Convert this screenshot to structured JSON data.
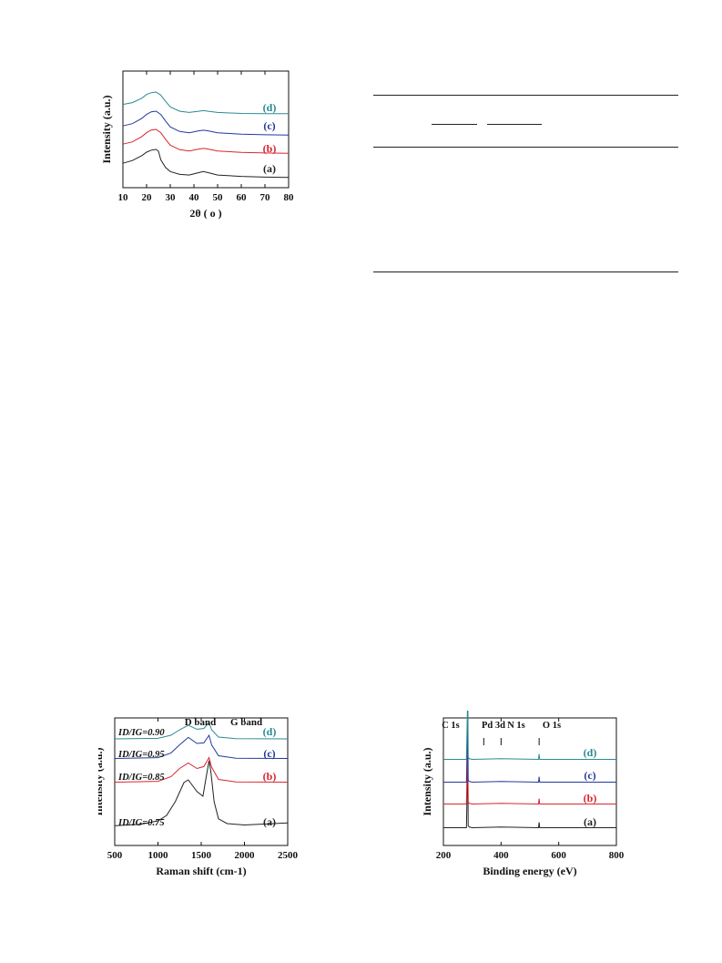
{
  "colors": {
    "a": "#222222",
    "b": "#d8262e",
    "c": "#23399b",
    "d": "#2b8a92"
  },
  "series_labels": [
    "(a)",
    "(b)",
    "(c)",
    "(d)"
  ],
  "chart_data": [
    {
      "type": "line",
      "title": "",
      "xlabel": "2θ ( o )",
      "ylabel": "Intensity (a.u.)",
      "xlim": [
        10,
        80
      ],
      "xticks": [
        10,
        20,
        30,
        40,
        50,
        60,
        70,
        80
      ],
      "grid": false,
      "series": [
        {
          "name": "(a)",
          "x": [
            10,
            14,
            18,
            20,
            22,
            24,
            25,
            26,
            28,
            30,
            34,
            38,
            42,
            44,
            46,
            50,
            60,
            70,
            80
          ],
          "y": [
            0.6,
            0.68,
            0.82,
            0.92,
            0.98,
            1.0,
            0.95,
            0.7,
            0.48,
            0.36,
            0.28,
            0.26,
            0.33,
            0.36,
            0.33,
            0.26,
            0.22,
            0.2,
            0.19
          ]
        },
        {
          "name": "(b)",
          "x": [
            10,
            14,
            18,
            20,
            22,
            24,
            26,
            28,
            30,
            34,
            38,
            42,
            44,
            46,
            50,
            60,
            70,
            80
          ],
          "y": [
            0.55,
            0.62,
            0.78,
            0.9,
            0.98,
            1.0,
            0.9,
            0.7,
            0.52,
            0.38,
            0.34,
            0.4,
            0.42,
            0.4,
            0.34,
            0.3,
            0.28,
            0.27
          ]
        },
        {
          "name": "(c)",
          "x": [
            10,
            14,
            18,
            20,
            22,
            24,
            26,
            28,
            30,
            34,
            38,
            42,
            44,
            46,
            50,
            60,
            70,
            80
          ],
          "y": [
            0.55,
            0.62,
            0.78,
            0.9,
            0.98,
            1.0,
            0.9,
            0.7,
            0.52,
            0.38,
            0.34,
            0.4,
            0.42,
            0.4,
            0.34,
            0.3,
            0.28,
            0.27
          ]
        },
        {
          "name": "(d)",
          "x": [
            10,
            14,
            18,
            20,
            22,
            24,
            26,
            28,
            30,
            34,
            38,
            42,
            44,
            46,
            50,
            60,
            70,
            80
          ],
          "y": [
            0.6,
            0.66,
            0.8,
            0.92,
            0.98,
            1.0,
            0.9,
            0.7,
            0.52,
            0.38,
            0.34,
            0.38,
            0.4,
            0.38,
            0.34,
            0.31,
            0.3,
            0.3
          ]
        }
      ]
    },
    {
      "type": "line",
      "title": "",
      "xlabel": "Raman shift (cm-1)",
      "ylabel": "Intensity (a.u.)",
      "xlim": [
        500,
        2500
      ],
      "xticks": [
        500,
        1000,
        1500,
        2000,
        2500
      ],
      "band_labels": [
        "D band",
        "G band"
      ],
      "ratio_labels": [
        "ID/IG=0.90",
        "ID/IG=0.95",
        "ID/IG=0.85",
        "ID/IG=0.75"
      ],
      "grid": false,
      "series": [
        {
          "name": "(a)",
          "x": [
            500,
            800,
            1000,
            1100,
            1200,
            1300,
            1350,
            1450,
            1520,
            1560,
            1590,
            1610,
            1650,
            1700,
            1800,
            2000,
            2500
          ],
          "y": [
            0.05,
            0.07,
            0.12,
            0.2,
            0.4,
            0.68,
            0.72,
            0.55,
            0.48,
            0.78,
            1.0,
            0.85,
            0.4,
            0.15,
            0.08,
            0.06,
            0.09
          ]
        },
        {
          "name": "(b)",
          "x": [
            500,
            1000,
            1150,
            1250,
            1350,
            1450,
            1530,
            1590,
            1620,
            1700,
            1900,
            2500
          ],
          "y": [
            0.05,
            0.08,
            0.25,
            0.55,
            0.75,
            0.55,
            0.62,
            0.95,
            0.6,
            0.15,
            0.06,
            0.05
          ]
        },
        {
          "name": "(c)",
          "x": [
            500,
            1000,
            1150,
            1250,
            1350,
            1450,
            1530,
            1590,
            1620,
            1700,
            1900,
            2500
          ],
          "y": [
            0.05,
            0.08,
            0.25,
            0.55,
            0.82,
            0.6,
            0.62,
            0.9,
            0.55,
            0.15,
            0.06,
            0.05
          ]
        },
        {
          "name": "(d)",
          "x": [
            500,
            1000,
            1150,
            1250,
            1350,
            1450,
            1530,
            1590,
            1620,
            1700,
            1900,
            2500
          ],
          "y": [
            0.05,
            0.08,
            0.25,
            0.55,
            0.8,
            0.58,
            0.62,
            0.95,
            0.55,
            0.15,
            0.06,
            0.05
          ]
        }
      ]
    },
    {
      "type": "line",
      "title": "",
      "xlabel": "Binding energy (eV)",
      "ylabel": "Intensity (a.u.)",
      "xlim": [
        200,
        800
      ],
      "xticks": [
        200,
        400,
        600,
        800
      ],
      "peak_labels": [
        "C 1s",
        "Pd 3d",
        "N 1s",
        "O 1s"
      ],
      "peak_positions": [
        285,
        340,
        400,
        532
      ],
      "grid": false,
      "series": [
        {
          "name": "(a)",
          "x": [
            200,
            280,
            284,
            285,
            286,
            290,
            300,
            400,
            530,
            532,
            534,
            800
          ],
          "y": [
            0.02,
            0.02,
            0.9,
            0.9,
            0.05,
            0.03,
            0.02,
            0.03,
            0.02,
            0.1,
            0.02,
            0.02
          ]
        },
        {
          "name": "(b)",
          "x": [
            200,
            280,
            284,
            285,
            286,
            290,
            300,
            400,
            530,
            532,
            534,
            800
          ],
          "y": [
            0.02,
            0.02,
            0.9,
            0.9,
            0.05,
            0.03,
            0.02,
            0.03,
            0.02,
            0.1,
            0.02,
            0.02
          ]
        },
        {
          "name": "(c)",
          "x": [
            200,
            280,
            284,
            285,
            286,
            290,
            300,
            400,
            530,
            532,
            534,
            800
          ],
          "y": [
            0.02,
            0.02,
            0.9,
            0.9,
            0.05,
            0.03,
            0.02,
            0.03,
            0.02,
            0.1,
            0.02,
            0.02
          ]
        },
        {
          "name": "(d)",
          "x": [
            200,
            280,
            284,
            285,
            286,
            290,
            300,
            400,
            530,
            532,
            534,
            800
          ],
          "y": [
            0.02,
            0.02,
            0.9,
            0.9,
            0.05,
            0.03,
            0.02,
            0.03,
            0.02,
            0.1,
            0.02,
            0.02
          ]
        }
      ]
    }
  ]
}
